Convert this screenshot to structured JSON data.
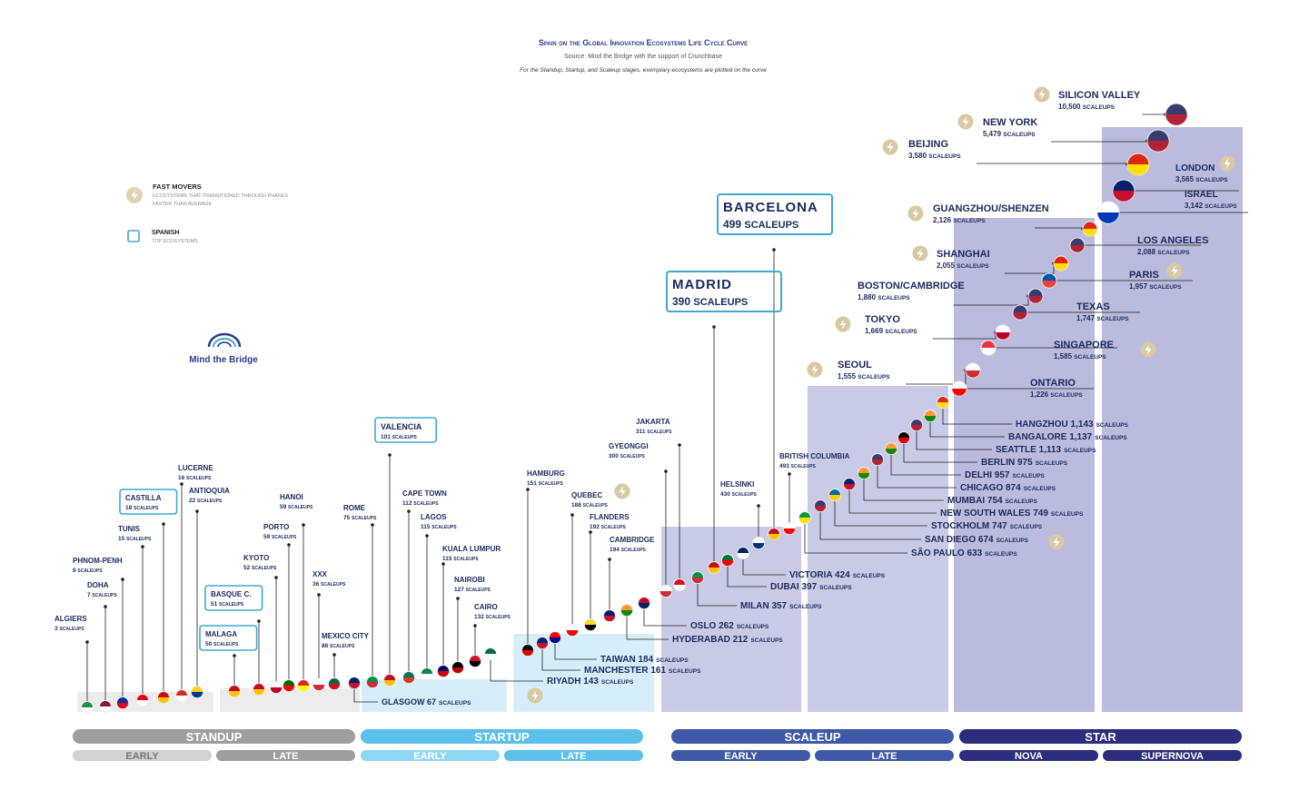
{
  "header": {
    "title": "Spain on the Global Innovation Ecosystems Life Cycle Curve",
    "source": "Source: Mind the Bridge with the support of Crunchbase",
    "note": "For the Standup, Startup, and Scaleup stages, exemplary ecosystems are plotted on the curve"
  },
  "legend": {
    "fast_movers_title": "FAST MOVERS",
    "fast_movers_desc_1": "ECOSYSTEMS THAT TRANSITIONED THROUGH PHASES",
    "fast_movers_desc_2": "FASTER THAN AVERAGE",
    "spanish_title": "SPANISH",
    "spanish_desc": "TOP ECOSYSTEMS"
  },
  "logo": {
    "text": "Mind the Bridge"
  },
  "colors": {
    "standup": "#9e9e9e",
    "standup_early": "#d2d2d2",
    "standup_late": "#9e9e9e",
    "startup": "#5bc0eb",
    "startup_early": "#8fd8f5",
    "startup_late": "#5bc0eb",
    "scaleup": "#3f58a8",
    "scaleup_early": "#3f58a8",
    "scaleup_late": "#3f58a8",
    "star": "#2c2d7c",
    "star_nova": "#2c2d7c",
    "star_supernova": "#2c2d7c",
    "band_standup": "#ececec",
    "band_startup": "#d6eef9",
    "band_scaleup": "#c9cbe6",
    "band_star": "#babbdd",
    "spanish_box": "#3fa9d1",
    "fast_mover": "#d9c9a3"
  },
  "chart_data": {
    "type": "scatter",
    "title": "Spain on the Global Innovation Ecosystems Life Cycle Curve",
    "stages": [
      {
        "name": "STANDUP",
        "phases": [
          "EARLY",
          "LATE"
        ]
      },
      {
        "name": "STARTUP",
        "phases": [
          "EARLY",
          "LATE"
        ]
      },
      {
        "name": "SCALEUP",
        "phases": [
          "EARLY",
          "LATE"
        ]
      },
      {
        "name": "STAR",
        "phases": [
          "NOVA",
          "SUPERNOVA"
        ]
      }
    ],
    "unit_label": "SCALEUPS",
    "ecosystems": [
      {
        "name": "ALGIERS",
        "scaleups": 3
      },
      {
        "name": "DOHA",
        "scaleups": 7
      },
      {
        "name": "PHNOM-PENH",
        "scaleups": 9
      },
      {
        "name": "TUNIS",
        "scaleups": 15
      },
      {
        "name": "CASTILLA",
        "scaleups": 18,
        "spanish": true
      },
      {
        "name": "LUCERNE",
        "scaleups": 16
      },
      {
        "name": "ANTIOQUIA",
        "scaleups": 22
      },
      {
        "name": "MALAGA",
        "scaleups": 50,
        "spanish": true
      },
      {
        "name": "BASQUE C.",
        "scaleups": 51,
        "spanish": true
      },
      {
        "name": "KYOTO",
        "scaleups": 52
      },
      {
        "name": "PORTO",
        "scaleups": 59
      },
      {
        "name": "HANOI",
        "scaleups": 59
      },
      {
        "name": "XXX",
        "scaleups": 36
      },
      {
        "name": "MEXICO CITY",
        "scaleups": 86
      },
      {
        "name": "GLASGOW",
        "scaleups": 67
      },
      {
        "name": "ROME",
        "scaleups": 75
      },
      {
        "name": "VALENCIA",
        "scaleups": 101,
        "spanish": true
      },
      {
        "name": "CAPE TOWN",
        "scaleups": 112
      },
      {
        "name": "LAGOS",
        "scaleups": 115
      },
      {
        "name": "KUALA LUMPUR",
        "scaleups": 115
      },
      {
        "name": "NAIROBI",
        "scaleups": 127
      },
      {
        "name": "CAIRO",
        "scaleups": 132
      },
      {
        "name": "RIYADH",
        "scaleups": 143
      },
      {
        "name": "HAMBURG",
        "scaleups": 151
      },
      {
        "name": "MANCHESTER",
        "scaleups": 161
      },
      {
        "name": "TAIWAN",
        "scaleups": 184
      },
      {
        "name": "QUEBEC",
        "scaleups": 188,
        "fast_mover": true
      },
      {
        "name": "FLANDERS",
        "scaleups": 192
      },
      {
        "name": "CAMBRIDGE",
        "scaleups": 194
      },
      {
        "name": "HYDERABAD",
        "scaleups": 212
      },
      {
        "name": "OSLO",
        "scaleups": 262
      },
      {
        "name": "GYEONGGI",
        "scaleups": 300
      },
      {
        "name": "JAKARTA",
        "scaleups": 311
      },
      {
        "name": "MILAN",
        "scaleups": 357
      },
      {
        "name": "MADRID",
        "scaleups": 390,
        "spanish": true
      },
      {
        "name": "DUBAI",
        "scaleups": 397
      },
      {
        "name": "VICTORIA",
        "scaleups": 424
      },
      {
        "name": "HELSINKI",
        "scaleups": 430
      },
      {
        "name": "BRITISH COLUMBIA",
        "scaleups": 493
      },
      {
        "name": "BARCELONA",
        "scaleups": 499,
        "spanish": true
      },
      {
        "name": "SÃO PAULO",
        "scaleups": 633
      },
      {
        "name": "SAN DIEGO",
        "scaleups": 674,
        "fast_mover": true
      },
      {
        "name": "STOCKHOLM",
        "scaleups": 747
      },
      {
        "name": "NEW SOUTH WALES",
        "scaleups": 749
      },
      {
        "name": "MUMBAI",
        "scaleups": 754
      },
      {
        "name": "CHICAGO",
        "scaleups": 874
      },
      {
        "name": "DELHI",
        "scaleups": 957
      },
      {
        "name": "BERLIN",
        "scaleups": 975
      },
      {
        "name": "SEATTLE",
        "scaleups": 1113
      },
      {
        "name": "BANGALORE",
        "scaleups": 1137
      },
      {
        "name": "HANGZHOU",
        "scaleups": 1143
      },
      {
        "name": "ONTARIO",
        "scaleups": 1226
      },
      {
        "name": "SEOUL",
        "scaleups": 1555,
        "fast_mover": true
      },
      {
        "name": "SINGAPORE",
        "scaleups": 1585,
        "fast_mover": true
      },
      {
        "name": "TOKYO",
        "scaleups": 1669,
        "fast_mover": true
      },
      {
        "name": "TEXAS",
        "scaleups": 1747
      },
      {
        "name": "BOSTON/CAMBRIDGE",
        "scaleups": 1880
      },
      {
        "name": "PARIS",
        "scaleups": 1957,
        "fast_mover": true
      },
      {
        "name": "SHANGHAI",
        "scaleups": 2055,
        "fast_mover": true
      },
      {
        "name": "LOS ANGELES",
        "scaleups": 2088
      },
      {
        "name": "GUANGZHOU/SHENZEN",
        "scaleups": 2126,
        "fast_mover": true
      },
      {
        "name": "ISRAEL",
        "scaleups": 3142
      },
      {
        "name": "LONDON",
        "scaleups": 3565,
        "fast_mover": true
      },
      {
        "name": "BEIJING",
        "scaleups": 3580,
        "fast_mover": true
      },
      {
        "name": "NEW YORK",
        "scaleups": 5479,
        "fast_mover": true
      },
      {
        "name": "SILICON VALLEY",
        "scaleups": 10500,
        "fast_mover": true
      }
    ]
  }
}
